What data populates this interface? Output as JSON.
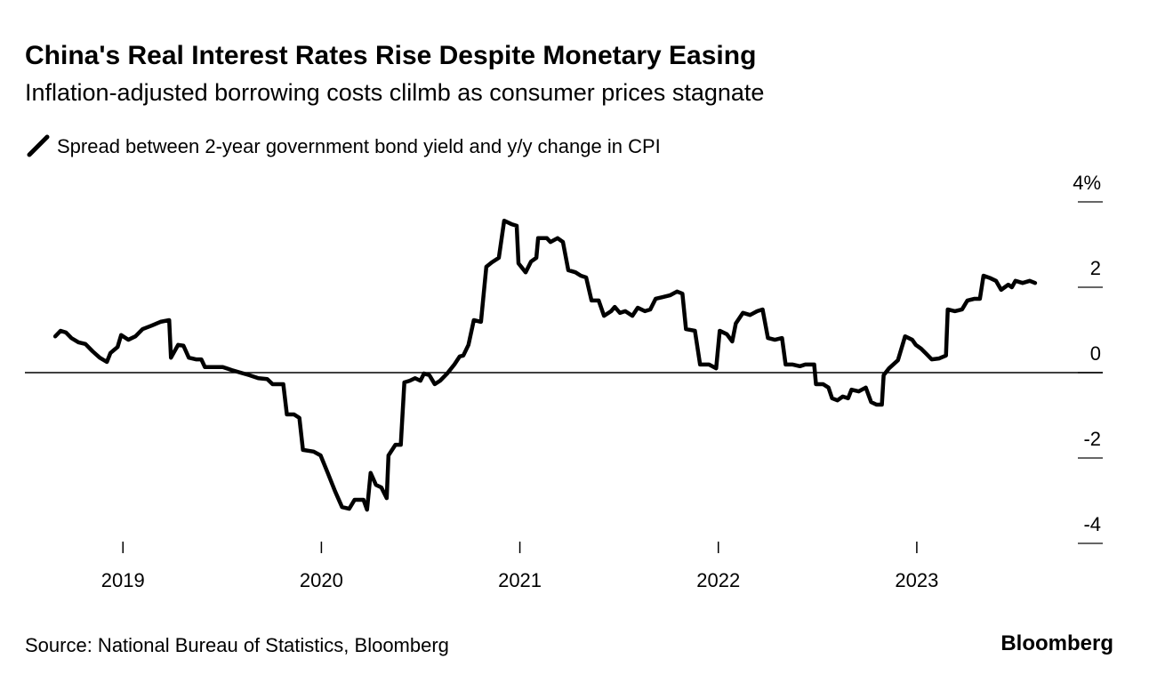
{
  "chart_data": {
    "type": "line",
    "title": "China's Real Interest Rates Rise Despite Monetary Easing",
    "subtitle": "Inflation-adjusted borrowing costs clilmb as consumer prices stagnate",
    "source": "Source: National Bureau of Statistics, Bloomberg",
    "brand": "Bloomberg",
    "x": [
      2018.659,
      2018.686,
      2018.713,
      2018.74,
      2018.776,
      2018.811,
      2018.847,
      2018.883,
      2018.919,
      2018.937,
      2018.973,
      2018.991,
      2019.027,
      2019.063,
      2019.099,
      2019.144,
      2019.189,
      2019.233,
      2019.242,
      2019.278,
      2019.305,
      2019.332,
      2019.368,
      2019.395,
      2019.413,
      2019.458,
      2019.503,
      2019.548,
      2019.592,
      2019.637,
      2019.682,
      2019.727,
      2019.754,
      2019.808,
      2019.826,
      2019.862,
      2019.889,
      2019.907,
      2019.961,
      2019.996,
      2020.032,
      2020.068,
      2020.104,
      2020.14,
      2020.167,
      2020.212,
      2020.23,
      2020.248,
      2020.275,
      2020.302,
      2020.329,
      2020.338,
      2020.373,
      2020.4,
      2020.418,
      2020.445,
      2020.472,
      2020.499,
      2020.517,
      2020.544,
      2020.571,
      2020.598,
      2020.634,
      2020.67,
      2020.697,
      2020.715,
      2020.741,
      2020.768,
      2020.804,
      2020.831,
      2020.858,
      2020.894,
      2020.921,
      2020.957,
      2020.984,
      2020.993,
      2021.029,
      2021.056,
      2021.083,
      2021.092,
      2021.136,
      2021.154,
      2021.19,
      2021.217,
      2021.244,
      2021.28,
      2021.307,
      2021.334,
      2021.361,
      2021.397,
      2021.424,
      2021.46,
      2021.478,
      2021.504,
      2021.531,
      2021.567,
      2021.594,
      2021.63,
      2021.657,
      2021.684,
      2021.72,
      2021.756,
      2021.792,
      2021.819,
      2021.837,
      2021.882,
      2021.908,
      2021.953,
      2021.989,
      2022.007,
      2022.043,
      2022.07,
      2022.088,
      2022.124,
      2022.16,
      2022.196,
      2022.223,
      2022.25,
      2022.285,
      2022.321,
      2022.339,
      2022.375,
      2022.411,
      2022.438,
      2022.483,
      2022.492,
      2022.528,
      2022.555,
      2022.573,
      2022.6,
      2022.627,
      2022.654,
      2022.671,
      2022.707,
      2022.743,
      2022.77,
      2022.797,
      2022.824,
      2022.833,
      2022.86,
      2022.905,
      2022.941,
      2022.977,
      2022.995,
      2023.022,
      2023.048,
      2023.075,
      2023.111,
      2023.147,
      2023.156,
      2023.192,
      2023.228,
      2023.255,
      2023.291,
      2023.318,
      2023.336,
      2023.372,
      2023.399,
      2023.425,
      2023.461,
      2023.479,
      2023.497,
      2023.533,
      2023.569,
      2023.596
    ],
    "series": [
      {
        "name": "Spread between 2-year government bond yield and y/y change in CPI",
        "color": "#000000",
        "values": [
          0.85,
          0.98,
          0.94,
          0.81,
          0.71,
          0.67,
          0.5,
          0.35,
          0.25,
          0.46,
          0.6,
          0.88,
          0.77,
          0.85,
          1.02,
          1.1,
          1.19,
          1.23,
          0.35,
          0.65,
          0.63,
          0.35,
          0.31,
          0.31,
          0.13,
          0.13,
          0.13,
          0.06,
          0,
          -0.06,
          -0.13,
          -0.15,
          -0.27,
          -0.27,
          -0.98,
          -0.98,
          -1.06,
          -1.81,
          -1.85,
          -1.94,
          -2.35,
          -2.77,
          -3.15,
          -3.19,
          -2.98,
          -2.98,
          -3.21,
          -2.35,
          -2.63,
          -2.69,
          -2.94,
          -1.94,
          -1.69,
          -1.69,
          -0.23,
          -0.19,
          -0.13,
          -0.19,
          -0.02,
          -0.06,
          -0.27,
          -0.19,
          -0.02,
          0.19,
          0.38,
          0.4,
          0.65,
          1.23,
          1.19,
          2.48,
          2.58,
          2.69,
          3.56,
          3.48,
          3.44,
          2.56,
          2.35,
          2.6,
          2.69,
          3.15,
          3.15,
          3.06,
          3.15,
          3.06,
          2.4,
          2.35,
          2.27,
          2.23,
          1.69,
          1.69,
          1.33,
          1.44,
          1.54,
          1.4,
          1.44,
          1.33,
          1.52,
          1.44,
          1.48,
          1.73,
          1.77,
          1.81,
          1.9,
          1.85,
          1.02,
          0.98,
          0.19,
          0.19,
          0.1,
          0.98,
          0.9,
          0.73,
          1.15,
          1.4,
          1.35,
          1.44,
          1.48,
          0.81,
          0.77,
          0.81,
          0.19,
          0.19,
          0.15,
          0.19,
          0.19,
          -0.27,
          -0.27,
          -0.35,
          -0.6,
          -0.65,
          -0.56,
          -0.6,
          -0.4,
          -0.44,
          -0.35,
          -0.69,
          -0.75,
          -0.75,
          -0.06,
          0.1,
          0.29,
          0.85,
          0.77,
          0.65,
          0.56,
          0.44,
          0.31,
          0.33,
          0.4,
          1.48,
          1.44,
          1.48,
          1.69,
          1.73,
          1.73,
          2.27,
          2.21,
          2.15,
          1.94,
          2.06,
          2.0,
          2.15,
          2.1,
          2.15,
          2.1
        ]
      }
    ],
    "xlim": [
      2018.506,
      2023.937
    ],
    "xticks": [
      2019,
      2020,
      2021,
      2022,
      2023
    ],
    "ylim": [
      -4,
      4
    ],
    "yticks": [
      {
        "value": 4,
        "label": "4%"
      },
      2,
      0,
      -2,
      -4
    ]
  }
}
